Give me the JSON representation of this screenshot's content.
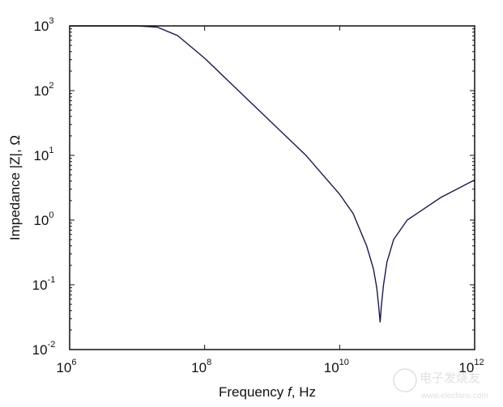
{
  "chart_data": {
    "type": "line",
    "title": "",
    "xlabel": "Frequency f, Hz",
    "xlabel_parts": [
      "Frequency ",
      "f",
      ", Hz"
    ],
    "ylabel": "Impedance |Z|, Ω",
    "xscale": "log",
    "yscale": "log",
    "xlim": [
      1000000.0,
      1000000000000.0
    ],
    "ylim": [
      0.01,
      1000
    ],
    "x_ticks": [
      {
        "exp": "6"
      },
      {
        "exp": "8"
      },
      {
        "exp": "10"
      },
      {
        "exp": "12"
      }
    ],
    "y_ticks": [
      {
        "exp": "3"
      },
      {
        "exp": "2"
      },
      {
        "exp": "1"
      },
      {
        "exp": "0"
      },
      {
        "exp": "-1"
      },
      {
        "exp": "-2"
      }
    ],
    "tick_base": "10",
    "grid": false,
    "line_color": "#1a1a4a",
    "series": [
      {
        "name": "|Z|",
        "log10_x": [
          6,
          7,
          7.3,
          7.6,
          8,
          8.5,
          9,
          9.5,
          10,
          10.2,
          10.4,
          10.5,
          10.55,
          10.58,
          10.6,
          10.62,
          10.65,
          10.7,
          10.8,
          11,
          11.5,
          12
        ],
        "log10_y": [
          3,
          3,
          2.98,
          2.85,
          2.5,
          2.0,
          1.5,
          1.0,
          0.4,
          0.1,
          -0.4,
          -0.75,
          -1.05,
          -1.35,
          -1.58,
          -1.3,
          -1.0,
          -0.65,
          -0.3,
          0.0,
          0.35,
          0.62
        ]
      }
    ]
  },
  "watermark": {
    "brand": "电子发烧友",
    "url": "www.elecfans.com"
  }
}
